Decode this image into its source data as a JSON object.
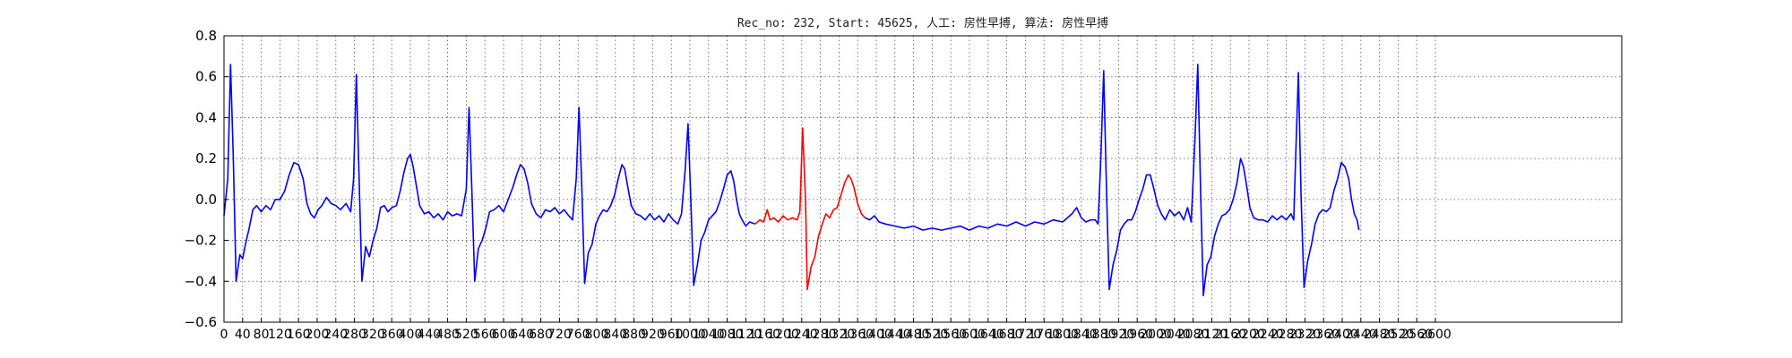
{
  "chart_data": {
    "type": "line",
    "title": "Rec_no: 232, Start: 45625, 人工: 房性早搏, 算法: 房性早搏",
    "xlabel": "",
    "ylabel": "",
    "xlim": [
      0,
      3000
    ],
    "ylim": [
      -0.6,
      0.8
    ],
    "grid": true,
    "y_ticks": [
      0.8,
      0.6,
      0.4,
      0.2,
      0.0,
      -0.2,
      -0.4,
      -0.6
    ],
    "y_tick_labels": [
      "0.8",
      "0.6",
      "0.4",
      "0.2",
      "0.0",
      "−0.2",
      "−0.4",
      "−0.6"
    ],
    "x_ticks": [
      0,
      40,
      80,
      120,
      160,
      200,
      240,
      280,
      320,
      360,
      400,
      440,
      480,
      520,
      560,
      600,
      640,
      680,
      720,
      760,
      800,
      840,
      880,
      920,
      960,
      1000,
      1040,
      1080,
      1120,
      1160,
      1200,
      1240,
      1280,
      1320,
      1360,
      1400,
      1440,
      1480,
      1520,
      1560,
      1600,
      1640,
      1680,
      1720,
      1760,
      1800,
      1840,
      1880,
      1920,
      1960,
      2000,
      2040,
      2080,
      2120,
      2160,
      2200,
      2240,
      2280,
      2320,
      2360,
      2400,
      2440,
      2480,
      2520,
      2560,
      2600
    ],
    "x_tick_labels": [
      "0",
      "40",
      "80",
      "120",
      "160",
      "200",
      "240",
      "280",
      "320",
      "360",
      "400",
      "440",
      "480",
      "520",
      "560",
      "600",
      "640",
      "680",
      "720",
      "760",
      "800",
      "840",
      "880",
      "920",
      "960",
      "1000",
      "1040",
      "1080",
      "1120",
      "1160",
      "1200",
      "1240",
      "1280",
      "1320",
      "1360",
      "1400",
      "1440",
      "1480",
      "1520",
      "1560",
      "1600",
      "1640",
      "1680",
      "1720",
      "1760",
      "1800",
      "1840",
      "1880",
      "1920",
      "1960",
      "2000",
      "2040",
      "2080",
      "2120",
      "2160",
      "2200",
      "2240",
      "2280",
      "2320",
      "2360",
      "2400",
      "2440",
      "2480",
      "2520",
      "2560",
      "2600"
    ],
    "x_tick_positions_note": "",
    "series": [
      {
        "color": "#0000ff",
        "segment": "before-beat",
        "points": [
          [
            0,
            -0.08
          ],
          [
            8,
            0.1
          ],
          [
            14,
            0.66
          ],
          [
            20,
            0.2
          ],
          [
            26,
            -0.4
          ],
          [
            34,
            -0.27
          ],
          [
            40,
            -0.29
          ],
          [
            46,
            -0.22
          ],
          [
            54,
            -0.14
          ],
          [
            62,
            -0.05
          ],
          [
            70,
            -0.03
          ],
          [
            80,
            -0.06
          ],
          [
            90,
            -0.03
          ],
          [
            100,
            -0.05
          ],
          [
            110,
            0.0
          ],
          [
            120,
            0.0
          ],
          [
            130,
            0.04
          ],
          [
            140,
            0.12
          ],
          [
            150,
            0.18
          ],
          [
            160,
            0.17
          ],
          [
            170,
            0.1
          ],
          [
            178,
            -0.02
          ],
          [
            186,
            -0.07
          ],
          [
            194,
            -0.09
          ],
          [
            202,
            -0.05
          ],
          [
            210,
            -0.03
          ],
          [
            220,
            0.01
          ],
          [
            230,
            -0.02
          ],
          [
            240,
            -0.03
          ],
          [
            250,
            -0.05
          ],
          [
            262,
            -0.02
          ],
          [
            272,
            -0.06
          ],
          [
            278,
            0.1
          ],
          [
            284,
            0.61
          ],
          [
            290,
            0.1
          ],
          [
            296,
            -0.4
          ],
          [
            304,
            -0.23
          ],
          [
            312,
            -0.28
          ],
          [
            320,
            -0.2
          ],
          [
            328,
            -0.14
          ],
          [
            336,
            -0.04
          ],
          [
            344,
            -0.03
          ],
          [
            352,
            -0.06
          ],
          [
            360,
            -0.04
          ],
          [
            370,
            -0.03
          ],
          [
            378,
            0.04
          ],
          [
            386,
            0.13
          ],
          [
            394,
            0.2
          ],
          [
            400,
            0.22
          ],
          [
            406,
            0.16
          ],
          [
            412,
            0.08
          ],
          [
            420,
            -0.03
          ],
          [
            430,
            -0.07
          ],
          [
            440,
            -0.06
          ],
          [
            450,
            -0.09
          ],
          [
            460,
            -0.07
          ],
          [
            470,
            -0.1
          ],
          [
            480,
            -0.06
          ],
          [
            490,
            -0.08
          ],
          [
            500,
            -0.07
          ],
          [
            510,
            -0.08
          ],
          [
            520,
            0.05
          ],
          [
            526,
            0.45
          ],
          [
            532,
            0.05
          ],
          [
            538,
            -0.4
          ],
          [
            546,
            -0.24
          ],
          [
            554,
            -0.2
          ],
          [
            562,
            -0.14
          ],
          [
            570,
            -0.06
          ],
          [
            580,
            -0.05
          ],
          [
            590,
            -0.03
          ],
          [
            600,
            -0.06
          ],
          [
            610,
            0.0
          ],
          [
            620,
            0.06
          ],
          [
            628,
            0.12
          ],
          [
            636,
            0.17
          ],
          [
            644,
            0.15
          ],
          [
            652,
            0.08
          ],
          [
            660,
            -0.02
          ],
          [
            670,
            -0.07
          ],
          [
            680,
            -0.09
          ],
          [
            690,
            -0.05
          ],
          [
            700,
            -0.06
          ],
          [
            710,
            -0.04
          ],
          [
            720,
            -0.07
          ],
          [
            730,
            -0.05
          ],
          [
            740,
            -0.08
          ],
          [
            748,
            -0.1
          ],
          [
            756,
            0.1
          ],
          [
            762,
            0.45
          ],
          [
            768,
            0.05
          ],
          [
            774,
            -0.41
          ],
          [
            782,
            -0.26
          ],
          [
            790,
            -0.22
          ],
          [
            798,
            -0.12
          ],
          [
            806,
            -0.08
          ],
          [
            814,
            -0.05
          ],
          [
            822,
            -0.06
          ],
          [
            830,
            -0.03
          ],
          [
            838,
            0.02
          ],
          [
            846,
            0.1
          ],
          [
            854,
            0.17
          ],
          [
            860,
            0.15
          ],
          [
            866,
            0.07
          ],
          [
            874,
            -0.03
          ],
          [
            884,
            -0.07
          ],
          [
            894,
            -0.08
          ],
          [
            904,
            -0.1
          ],
          [
            914,
            -0.07
          ],
          [
            924,
            -0.1
          ],
          [
            934,
            -0.08
          ],
          [
            944,
            -0.11
          ],
          [
            954,
            -0.07
          ],
          [
            964,
            -0.1
          ],
          [
            974,
            -0.12
          ],
          [
            982,
            -0.07
          ],
          [
            990,
            0.15
          ],
          [
            996,
            0.37
          ],
          [
            1002,
            0.0
          ],
          [
            1008,
            -0.42
          ],
          [
            1016,
            -0.32
          ],
          [
            1024,
            -0.2
          ],
          [
            1032,
            -0.16
          ],
          [
            1040,
            -0.1
          ],
          [
            1048,
            -0.08
          ],
          [
            1056,
            -0.06
          ],
          [
            1064,
            -0.01
          ],
          [
            1072,
            0.05
          ],
          [
            1080,
            0.12
          ],
          [
            1088,
            0.14
          ],
          [
            1094,
            0.09
          ],
          [
            1100,
            0.0
          ],
          [
            1106,
            -0.07
          ],
          [
            1112,
            -0.1
          ],
          [
            1120,
            -0.13
          ],
          [
            1128,
            -0.11
          ],
          [
            1140,
            -0.12
          ]
        ]
      },
      {
        "color": "#ff0000",
        "segment": "marked-beat",
        "points": [
          [
            1140,
            -0.12
          ],
          [
            1150,
            -0.1
          ],
          [
            1158,
            -0.11
          ],
          [
            1166,
            -0.05
          ],
          [
            1172,
            -0.1
          ],
          [
            1180,
            -0.09
          ],
          [
            1190,
            -0.11
          ],
          [
            1200,
            -0.08
          ],
          [
            1210,
            -0.1
          ],
          [
            1220,
            -0.09
          ],
          [
            1230,
            -0.1
          ],
          [
            1236,
            -0.06
          ],
          [
            1242,
            0.35
          ],
          [
            1248,
            0.0
          ],
          [
            1252,
            -0.44
          ],
          [
            1260,
            -0.33
          ],
          [
            1268,
            -0.28
          ],
          [
            1276,
            -0.18
          ],
          [
            1284,
            -0.12
          ],
          [
            1292,
            -0.07
          ],
          [
            1300,
            -0.09
          ],
          [
            1308,
            -0.05
          ],
          [
            1316,
            -0.04
          ],
          [
            1324,
            0.02
          ],
          [
            1332,
            0.08
          ],
          [
            1340,
            0.12
          ],
          [
            1346,
            0.1
          ],
          [
            1352,
            0.06
          ],
          [
            1360,
            -0.02
          ],
          [
            1368,
            -0.07
          ],
          [
            1376,
            -0.09
          ]
        ]
      },
      {
        "color": "#0000ff",
        "segment": "after-beat",
        "points": [
          [
            1376,
            -0.09
          ],
          [
            1386,
            -0.1
          ],
          [
            1396,
            -0.08
          ],
          [
            1406,
            -0.11
          ],
          [
            1420,
            -0.12
          ],
          [
            1440,
            -0.13
          ],
          [
            1460,
            -0.14
          ],
          [
            1480,
            -0.13
          ],
          [
            1500,
            -0.15
          ],
          [
            1520,
            -0.14
          ],
          [
            1540,
            -0.15
          ],
          [
            1560,
            -0.14
          ],
          [
            1580,
            -0.13
          ],
          [
            1600,
            -0.15
          ],
          [
            1620,
            -0.13
          ],
          [
            1640,
            -0.14
          ],
          [
            1660,
            -0.12
          ],
          [
            1680,
            -0.13
          ],
          [
            1700,
            -0.11
          ],
          [
            1720,
            -0.13
          ],
          [
            1740,
            -0.11
          ],
          [
            1760,
            -0.12
          ],
          [
            1780,
            -0.1
          ],
          [
            1800,
            -0.11
          ],
          [
            1820,
            -0.07
          ],
          [
            1830,
            -0.04
          ],
          [
            1840,
            -0.09
          ],
          [
            1850,
            -0.11
          ],
          [
            1860,
            -0.1
          ],
          [
            1870,
            -0.1
          ],
          [
            1876,
            -0.12
          ],
          [
            1882,
            0.2
          ],
          [
            1888,
            0.63
          ],
          [
            1894,
            0.05
          ],
          [
            1900,
            -0.44
          ],
          [
            1908,
            -0.32
          ],
          [
            1916,
            -0.25
          ],
          [
            1924,
            -0.15
          ],
          [
            1932,
            -0.12
          ],
          [
            1940,
            -0.1
          ],
          [
            1948,
            -0.1
          ],
          [
            1956,
            -0.06
          ],
          [
            1964,
            0.0
          ],
          [
            1972,
            0.05
          ],
          [
            1980,
            0.12
          ],
          [
            1988,
            0.12
          ],
          [
            1996,
            0.05
          ],
          [
            2004,
            -0.03
          ],
          [
            2012,
            -0.07
          ],
          [
            2020,
            -0.1
          ],
          [
            2030,
            -0.05
          ],
          [
            2040,
            -0.08
          ],
          [
            2050,
            -0.06
          ],
          [
            2060,
            -0.1
          ],
          [
            2068,
            -0.04
          ],
          [
            2076,
            -0.11
          ],
          [
            2084,
            0.3
          ],
          [
            2090,
            0.66
          ],
          [
            2096,
            0.05
          ],
          [
            2102,
            -0.47
          ],
          [
            2110,
            -0.32
          ],
          [
            2118,
            -0.28
          ],
          [
            2126,
            -0.18
          ],
          [
            2134,
            -0.12
          ],
          [
            2142,
            -0.08
          ],
          [
            2150,
            -0.07
          ],
          [
            2158,
            -0.05
          ],
          [
            2166,
            0.0
          ],
          [
            2174,
            0.08
          ],
          [
            2182,
            0.2
          ],
          [
            2188,
            0.16
          ],
          [
            2194,
            0.08
          ],
          [
            2202,
            -0.04
          ],
          [
            2210,
            -0.09
          ],
          [
            2220,
            -0.1
          ],
          [
            2230,
            -0.1
          ],
          [
            2240,
            -0.11
          ],
          [
            2250,
            -0.08
          ],
          [
            2260,
            -0.1
          ],
          [
            2270,
            -0.08
          ],
          [
            2280,
            -0.1
          ],
          [
            2290,
            -0.07
          ],
          [
            2296,
            -0.1
          ],
          [
            2300,
            0.2
          ],
          [
            2306,
            0.62
          ],
          [
            2312,
            0.0
          ],
          [
            2318,
            -0.43
          ],
          [
            2326,
            -0.3
          ],
          [
            2334,
            -0.22
          ],
          [
            2342,
            -0.12
          ],
          [
            2350,
            -0.07
          ],
          [
            2358,
            -0.05
          ],
          [
            2366,
            -0.06
          ],
          [
            2374,
            -0.04
          ],
          [
            2382,
            0.04
          ],
          [
            2390,
            0.1
          ],
          [
            2398,
            0.18
          ],
          [
            2406,
            0.16
          ],
          [
            2414,
            0.1
          ],
          [
            2420,
            0.0
          ],
          [
            2426,
            -0.07
          ],
          [
            2432,
            -0.1
          ],
          [
            2436,
            -0.15
          ]
        ]
      }
    ]
  }
}
